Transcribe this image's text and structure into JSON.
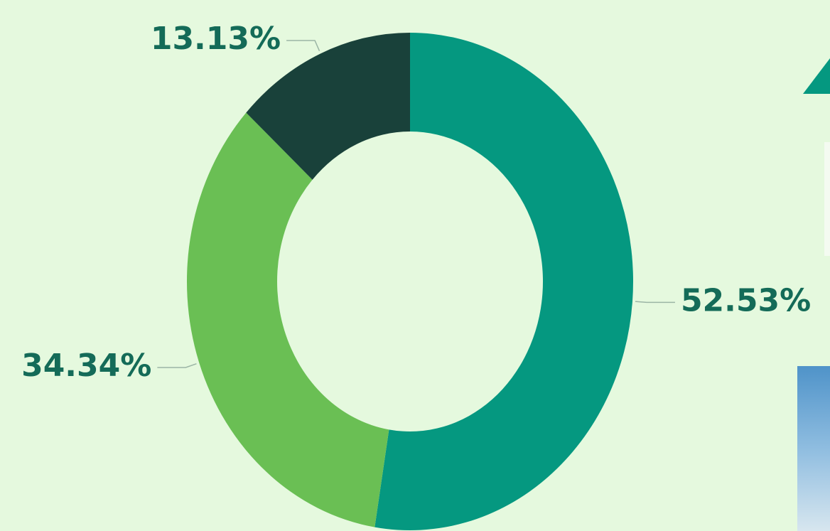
{
  "chart_data": {
    "type": "donut",
    "values": [
      52.53,
      34.34,
      13.13
    ],
    "value_labels": [
      "52.53%",
      "34.34%",
      "13.13%"
    ],
    "colors": [
      "#059880",
      "#6abf54",
      "#19413a"
    ]
  }
}
